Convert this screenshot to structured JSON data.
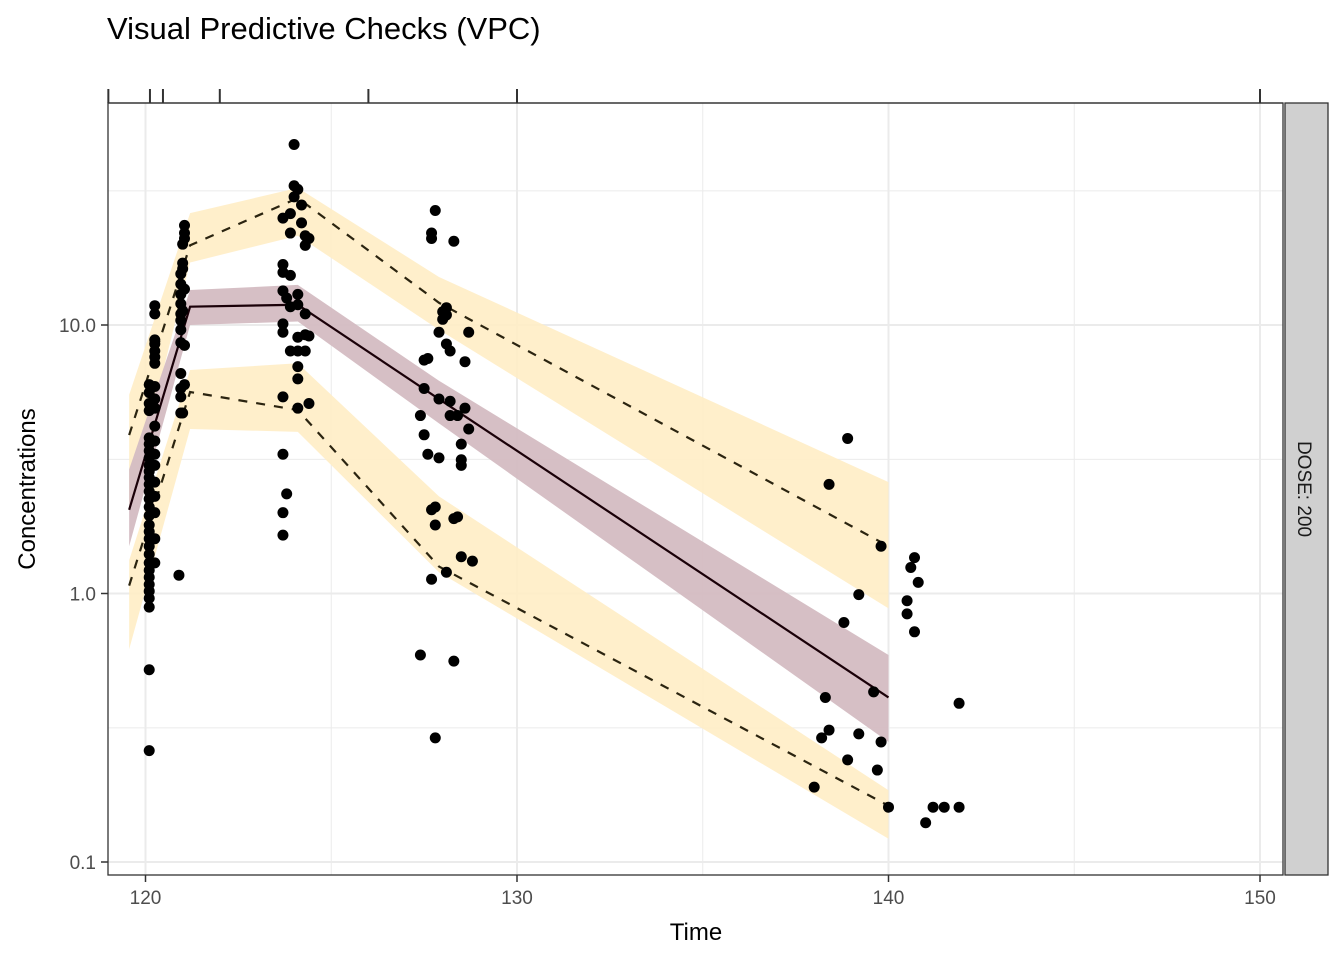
{
  "chart_data": {
    "type": "scatter",
    "title": "Visual Predictive Checks (VPC)",
    "xlabel": "Time",
    "ylabel": "Concentrations",
    "xlim": [
      119.0,
      150.7
    ],
    "ylim_log10": [
      -1.05,
      1.83
    ],
    "y_scale": "log10",
    "x_ticks": [
      120,
      130,
      140,
      150
    ],
    "x_tick_labels": [
      "120",
      "130",
      "140",
      "150"
    ],
    "y_ticks": [
      0.1,
      1.0,
      10.0
    ],
    "y_tick_labels": [
      "0.1",
      "1.0",
      "10.0"
    ],
    "x_minor_grid": [
      125,
      135,
      145
    ],
    "y_minor_grid": [
      0.316,
      3.16,
      31.6
    ],
    "grid": true,
    "bin_separators": [
      119.0,
      120.12,
      120.47,
      122.0,
      126.0,
      130.0,
      150.0
    ],
    "facet_strip": "DOSE: 200",
    "colors": {
      "pi_band": "#FFEDC5",
      "median_band": "#D4BCC2",
      "median_line": "#1A0008",
      "pi_line": "#2B2410",
      "points": "#000000",
      "strip_fill": "#D0D0D0",
      "grid": "#EBEBEB"
    },
    "bins_time": [
      119.56,
      121.2,
      124.1,
      127.9,
      140.0
    ],
    "series": [
      {
        "name": "upper_pi_band",
        "kind": "ribbon",
        "lo": [
          2.1,
          17.1,
          21.5,
          9.6,
          0.88
        ],
        "hi": [
          5.5,
          26.1,
          32.4,
          15.1,
          2.6
        ]
      },
      {
        "name": "median_band",
        "kind": "ribbon",
        "lo": [
          1.5,
          10.0,
          10.3,
          4.3,
          0.28
        ],
        "hi": [
          2.9,
          13.5,
          14.1,
          6.2,
          0.59
        ]
      },
      {
        "name": "lower_pi_band",
        "kind": "ribbon",
        "lo": [
          0.62,
          4.1,
          4.0,
          1.2,
          0.122
        ],
        "hi": [
          1.33,
          6.8,
          7.2,
          2.3,
          0.185
        ]
      },
      {
        "name": "upper_pi_line",
        "kind": "dashed",
        "values": [
          3.89,
          19.8,
          29.7,
          12.1,
          1.5
        ]
      },
      {
        "name": "median_line",
        "kind": "solid",
        "values": [
          2.05,
          11.7,
          11.9,
          5.3,
          0.41
        ]
      },
      {
        "name": "lower_pi_line",
        "kind": "dashed",
        "values": [
          1.07,
          5.63,
          4.82,
          1.26,
          0.162
        ]
      }
    ],
    "points": [
      [
        120.1,
        0.26
      ],
      [
        120.1,
        0.52
      ],
      [
        120.1,
        0.89
      ],
      [
        120.1,
        0.96
      ],
      [
        120.1,
        1.02
      ],
      [
        120.1,
        1.08
      ],
      [
        120.1,
        1.15
      ],
      [
        120.1,
        1.22
      ],
      [
        120.1,
        1.3
      ],
      [
        120.1,
        1.4
      ],
      [
        120.1,
        1.5
      ],
      [
        120.1,
        1.6
      ],
      [
        120.1,
        1.7
      ],
      [
        120.1,
        1.8
      ],
      [
        120.1,
        1.95
      ],
      [
        120.1,
        2.1
      ],
      [
        120.1,
        2.25
      ],
      [
        120.1,
        2.4
      ],
      [
        120.1,
        2.55
      ],
      [
        120.1,
        2.7
      ],
      [
        120.1,
        2.85
      ],
      [
        120.1,
        3.0
      ],
      [
        120.1,
        3.2
      ],
      [
        120.1,
        3.4
      ],
      [
        120.1,
        3.6
      ],
      [
        120.1,
        3.8
      ],
      [
        120.1,
        4.8
      ],
      [
        120.1,
        5.1
      ],
      [
        120.1,
        5.6
      ],
      [
        120.1,
        6.0
      ],
      [
        120.25,
        1.3
      ],
      [
        120.25,
        1.6
      ],
      [
        120.25,
        2.0
      ],
      [
        120.25,
        2.3
      ],
      [
        120.25,
        2.6
      ],
      [
        120.25,
        3.0
      ],
      [
        120.25,
        3.3
      ],
      [
        120.25,
        3.7
      ],
      [
        120.25,
        4.2
      ],
      [
        120.25,
        4.9
      ],
      [
        120.25,
        5.3
      ],
      [
        120.25,
        5.9
      ],
      [
        120.25,
        7.2
      ],
      [
        120.25,
        7.6
      ],
      [
        120.25,
        8.0
      ],
      [
        120.25,
        8.5
      ],
      [
        120.25,
        8.8
      ],
      [
        120.25,
        11.0
      ],
      [
        120.25,
        11.8
      ],
      [
        120.9,
        1.17
      ],
      [
        120.95,
        4.7
      ],
      [
        120.95,
        5.4
      ],
      [
        120.95,
        5.8
      ],
      [
        120.95,
        6.6
      ],
      [
        120.95,
        8.6
      ],
      [
        120.95,
        9.6
      ],
      [
        120.95,
        10.4
      ],
      [
        120.95,
        11.0
      ],
      [
        120.95,
        12.0
      ],
      [
        120.95,
        13.0
      ],
      [
        120.95,
        14.2
      ],
      [
        120.95,
        15.5
      ],
      [
        121.0,
        16.2
      ],
      [
        121.0,
        17.0
      ],
      [
        121.0,
        20.0
      ],
      [
        121.05,
        21.0
      ],
      [
        121.05,
        22.0
      ],
      [
        121.05,
        23.5
      ],
      [
        121.05,
        8.4
      ],
      [
        121.0,
        4.7
      ],
      [
        121.05,
        6.0
      ],
      [
        121.0,
        11.3
      ],
      [
        121.05,
        13.6
      ],
      [
        123.7,
        1.65
      ],
      [
        123.7,
        2.0
      ],
      [
        123.8,
        2.35
      ],
      [
        123.7,
        3.3
      ],
      [
        123.7,
        5.4
      ],
      [
        123.7,
        9.4
      ],
      [
        123.7,
        10.1
      ],
      [
        123.7,
        13.4
      ],
      [
        123.7,
        15.7
      ],
      [
        123.7,
        16.8
      ],
      [
        123.7,
        25.0
      ],
      [
        123.8,
        12.6
      ],
      [
        123.9,
        8.0
      ],
      [
        123.9,
        11.7
      ],
      [
        123.9,
        15.3
      ],
      [
        123.9,
        22.0
      ],
      [
        123.9,
        26.0
      ],
      [
        124.0,
        30.0
      ],
      [
        124.0,
        33.0
      ],
      [
        124.0,
        47.0
      ],
      [
        124.1,
        4.9
      ],
      [
        124.1,
        6.3
      ],
      [
        124.1,
        7.0
      ],
      [
        124.1,
        8.0
      ],
      [
        124.1,
        9.0
      ],
      [
        124.1,
        11.9
      ],
      [
        124.1,
        13.0
      ],
      [
        124.1,
        32.0
      ],
      [
        124.2,
        24.0
      ],
      [
        124.2,
        28.0
      ],
      [
        124.3,
        8.0
      ],
      [
        124.3,
        9.2
      ],
      [
        124.3,
        11.0
      ],
      [
        124.3,
        19.8
      ],
      [
        124.3,
        21.5
      ],
      [
        124.4,
        5.1
      ],
      [
        124.4,
        9.1
      ],
      [
        124.4,
        21.0
      ],
      [
        127.4,
        0.59
      ],
      [
        127.4,
        4.6
      ],
      [
        127.5,
        3.9
      ],
      [
        127.5,
        5.8
      ],
      [
        127.5,
        7.4
      ],
      [
        127.6,
        3.3
      ],
      [
        127.6,
        7.5
      ],
      [
        127.7,
        1.13
      ],
      [
        127.7,
        2.05
      ],
      [
        127.7,
        21.0
      ],
      [
        127.7,
        22.0
      ],
      [
        127.8,
        0.29
      ],
      [
        127.8,
        1.8
      ],
      [
        127.8,
        2.1
      ],
      [
        127.8,
        26.7
      ],
      [
        127.9,
        3.2
      ],
      [
        127.9,
        5.3
      ],
      [
        127.9,
        9.4
      ],
      [
        128.0,
        10.5
      ],
      [
        128.0,
        11.2
      ],
      [
        128.1,
        1.2
      ],
      [
        128.1,
        8.5
      ],
      [
        128.1,
        10.9
      ],
      [
        128.1,
        11.6
      ],
      [
        128.2,
        4.6
      ],
      [
        128.2,
        5.2
      ],
      [
        128.2,
        8.0
      ],
      [
        128.3,
        0.56
      ],
      [
        128.3,
        1.9
      ],
      [
        128.3,
        20.5
      ],
      [
        128.4,
        1.93
      ],
      [
        128.4,
        4.6
      ],
      [
        128.5,
        1.37
      ],
      [
        128.5,
        3.0
      ],
      [
        128.5,
        3.15
      ],
      [
        128.5,
        3.6
      ],
      [
        128.6,
        7.3
      ],
      [
        128.6,
        4.9
      ],
      [
        128.7,
        4.1
      ],
      [
        128.7,
        9.4
      ],
      [
        128.8,
        1.32
      ],
      [
        138.0,
        0.19
      ],
      [
        138.2,
        0.29
      ],
      [
        138.3,
        0.41
      ],
      [
        138.4,
        0.31
      ],
      [
        138.4,
        2.55
      ],
      [
        138.8,
        0.78
      ],
      [
        138.9,
        0.24
      ],
      [
        138.9,
        3.78
      ],
      [
        139.2,
        0.3
      ],
      [
        139.2,
        0.99
      ],
      [
        139.6,
        0.43
      ],
      [
        139.7,
        0.22
      ],
      [
        139.8,
        0.28
      ],
      [
        139.8,
        1.5
      ],
      [
        140.0,
        0.16
      ],
      [
        140.5,
        0.94
      ],
      [
        140.5,
        0.84
      ],
      [
        140.6,
        1.25
      ],
      [
        140.7,
        0.72
      ],
      [
        140.7,
        1.36
      ],
      [
        140.8,
        1.1
      ],
      [
        141.0,
        0.14
      ],
      [
        141.2,
        0.16
      ],
      [
        141.5,
        0.16
      ],
      [
        141.9,
        0.39
      ],
      [
        141.9,
        0.16
      ]
    ]
  }
}
